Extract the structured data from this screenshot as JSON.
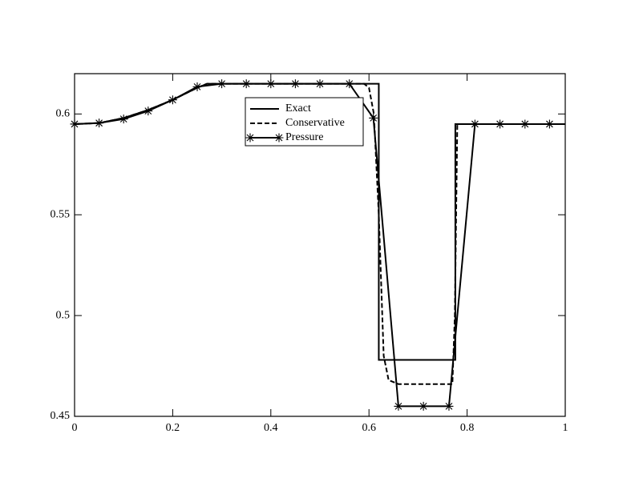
{
  "chart_data": {
    "type": "line",
    "xlim": [
      0,
      1
    ],
    "xticks": [
      0,
      0.2,
      0.4,
      0.6,
      0.8,
      1
    ],
    "ylim": [
      0.45,
      0.62
    ],
    "yticks": [
      0.45,
      0.5,
      0.55,
      0.6
    ],
    "legend": "top-center",
    "series": [
      {
        "name": "Exact",
        "color": "#000000",
        "style": "solid",
        "x": [
          0,
          0.05,
          0.1,
          0.15,
          0.2,
          0.25,
          0.27,
          0.62,
          0.62,
          0.776,
          0.776,
          1
        ],
        "values": [
          0.595,
          0.5955,
          0.598,
          0.602,
          0.607,
          0.613,
          0.615,
          0.615,
          0.478,
          0.478,
          0.595,
          0.595
        ]
      },
      {
        "name": "Conservative",
        "color": "#000000",
        "style": "dashed",
        "x": [
          0,
          0.05,
          0.1,
          0.15,
          0.2,
          0.25,
          0.27,
          0.59,
          0.6,
          0.61,
          0.62,
          0.63,
          0.64,
          0.66,
          0.77,
          0.775,
          0.78,
          1
        ],
        "values": [
          0.595,
          0.5955,
          0.598,
          0.602,
          0.607,
          0.613,
          0.615,
          0.615,
          0.613,
          0.6,
          0.55,
          0.48,
          0.468,
          0.466,
          0.466,
          0.5,
          0.595,
          0.595
        ]
      },
      {
        "name": "Pressure",
        "color": "#000000",
        "style": "solid",
        "marker": "star",
        "x": [
          0,
          0.05,
          0.1,
          0.15,
          0.2,
          0.25,
          0.3,
          0.35,
          0.4,
          0.45,
          0.5,
          0.56,
          0.609,
          0.66,
          0.711,
          0.763,
          0.816,
          0.867,
          0.918,
          0.968
        ],
        "values": [
          0.595,
          0.5955,
          0.5975,
          0.6015,
          0.607,
          0.6135,
          0.615,
          0.615,
          0.615,
          0.615,
          0.615,
          0.615,
          0.598,
          0.455,
          0.455,
          0.455,
          0.595,
          0.595,
          0.595,
          0.595
        ]
      }
    ]
  }
}
